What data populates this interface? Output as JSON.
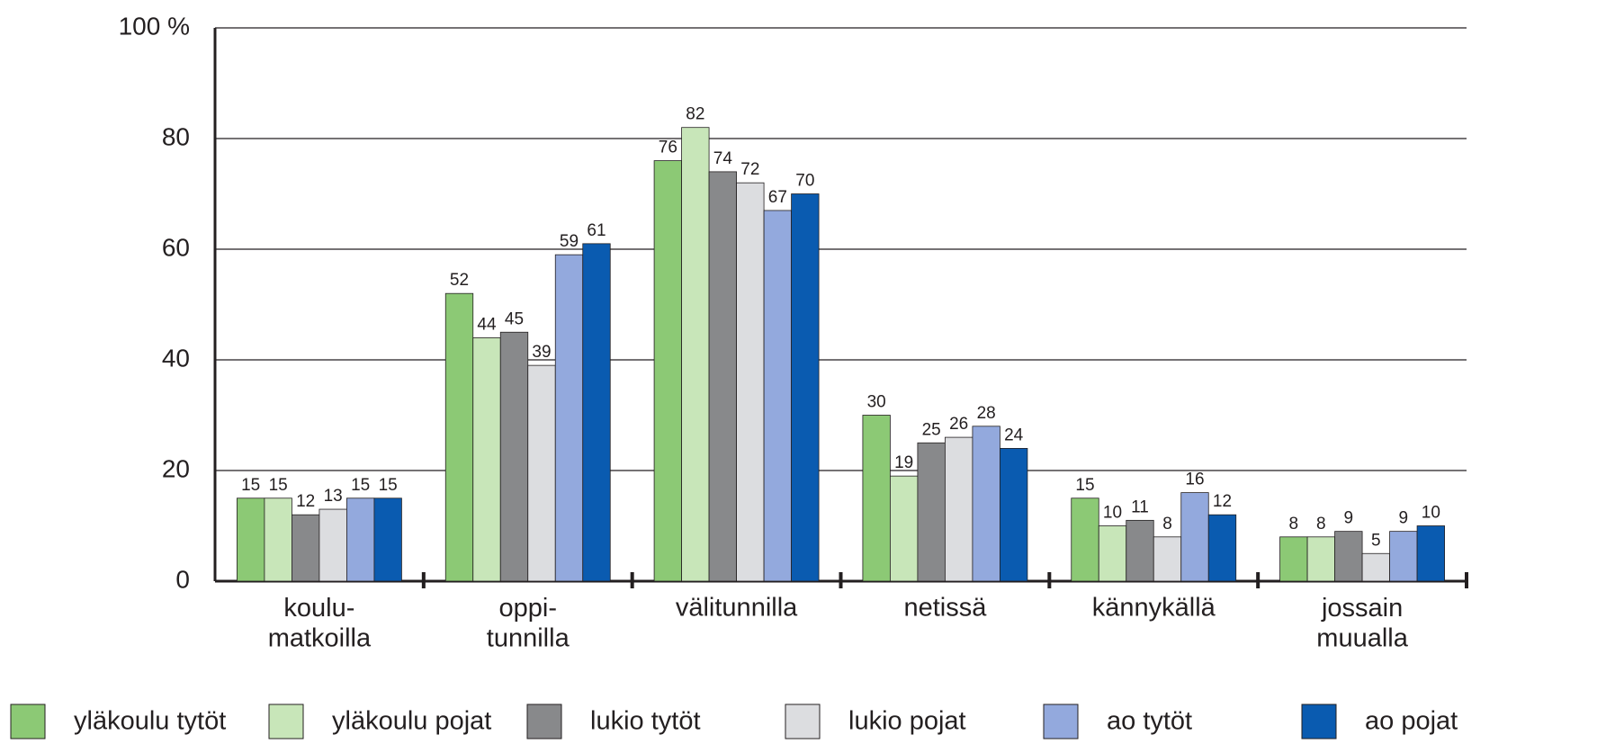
{
  "chart_data": {
    "type": "bar",
    "categories": [
      "koulu-\nmatkoilla",
      "oppi-\ntunnilla",
      "välitunnilla",
      "netissä",
      "kännykällä",
      "jossain\nmuualla"
    ],
    "series": [
      {
        "name": "yläkoulu tytöt",
        "color": "#8cc975",
        "values": [
          15,
          52,
          76,
          30,
          15,
          8
        ]
      },
      {
        "name": "yläkoulu pojat",
        "color": "#c8e6b9",
        "values": [
          15,
          44,
          82,
          19,
          10,
          8
        ]
      },
      {
        "name": "lukio tytöt",
        "color": "#88898b",
        "values": [
          12,
          45,
          74,
          25,
          11,
          9
        ]
      },
      {
        "name": "lukio pojat",
        "color": "#dcdde0",
        "values": [
          13,
          39,
          72,
          26,
          8,
          5
        ]
      },
      {
        "name": "ao tytöt",
        "color": "#93a9dd",
        "values": [
          15,
          59,
          67,
          28,
          16,
          9
        ]
      },
      {
        "name": "ao pojat",
        "color": "#0a5bb0",
        "values": [
          15,
          61,
          70,
          24,
          12,
          10
        ]
      }
    ],
    "ylim": [
      0,
      100
    ],
    "yticks": [
      0,
      20,
      40,
      60,
      80,
      {
        "value": 100,
        "label": "100 %"
      }
    ],
    "grid": true
  }
}
